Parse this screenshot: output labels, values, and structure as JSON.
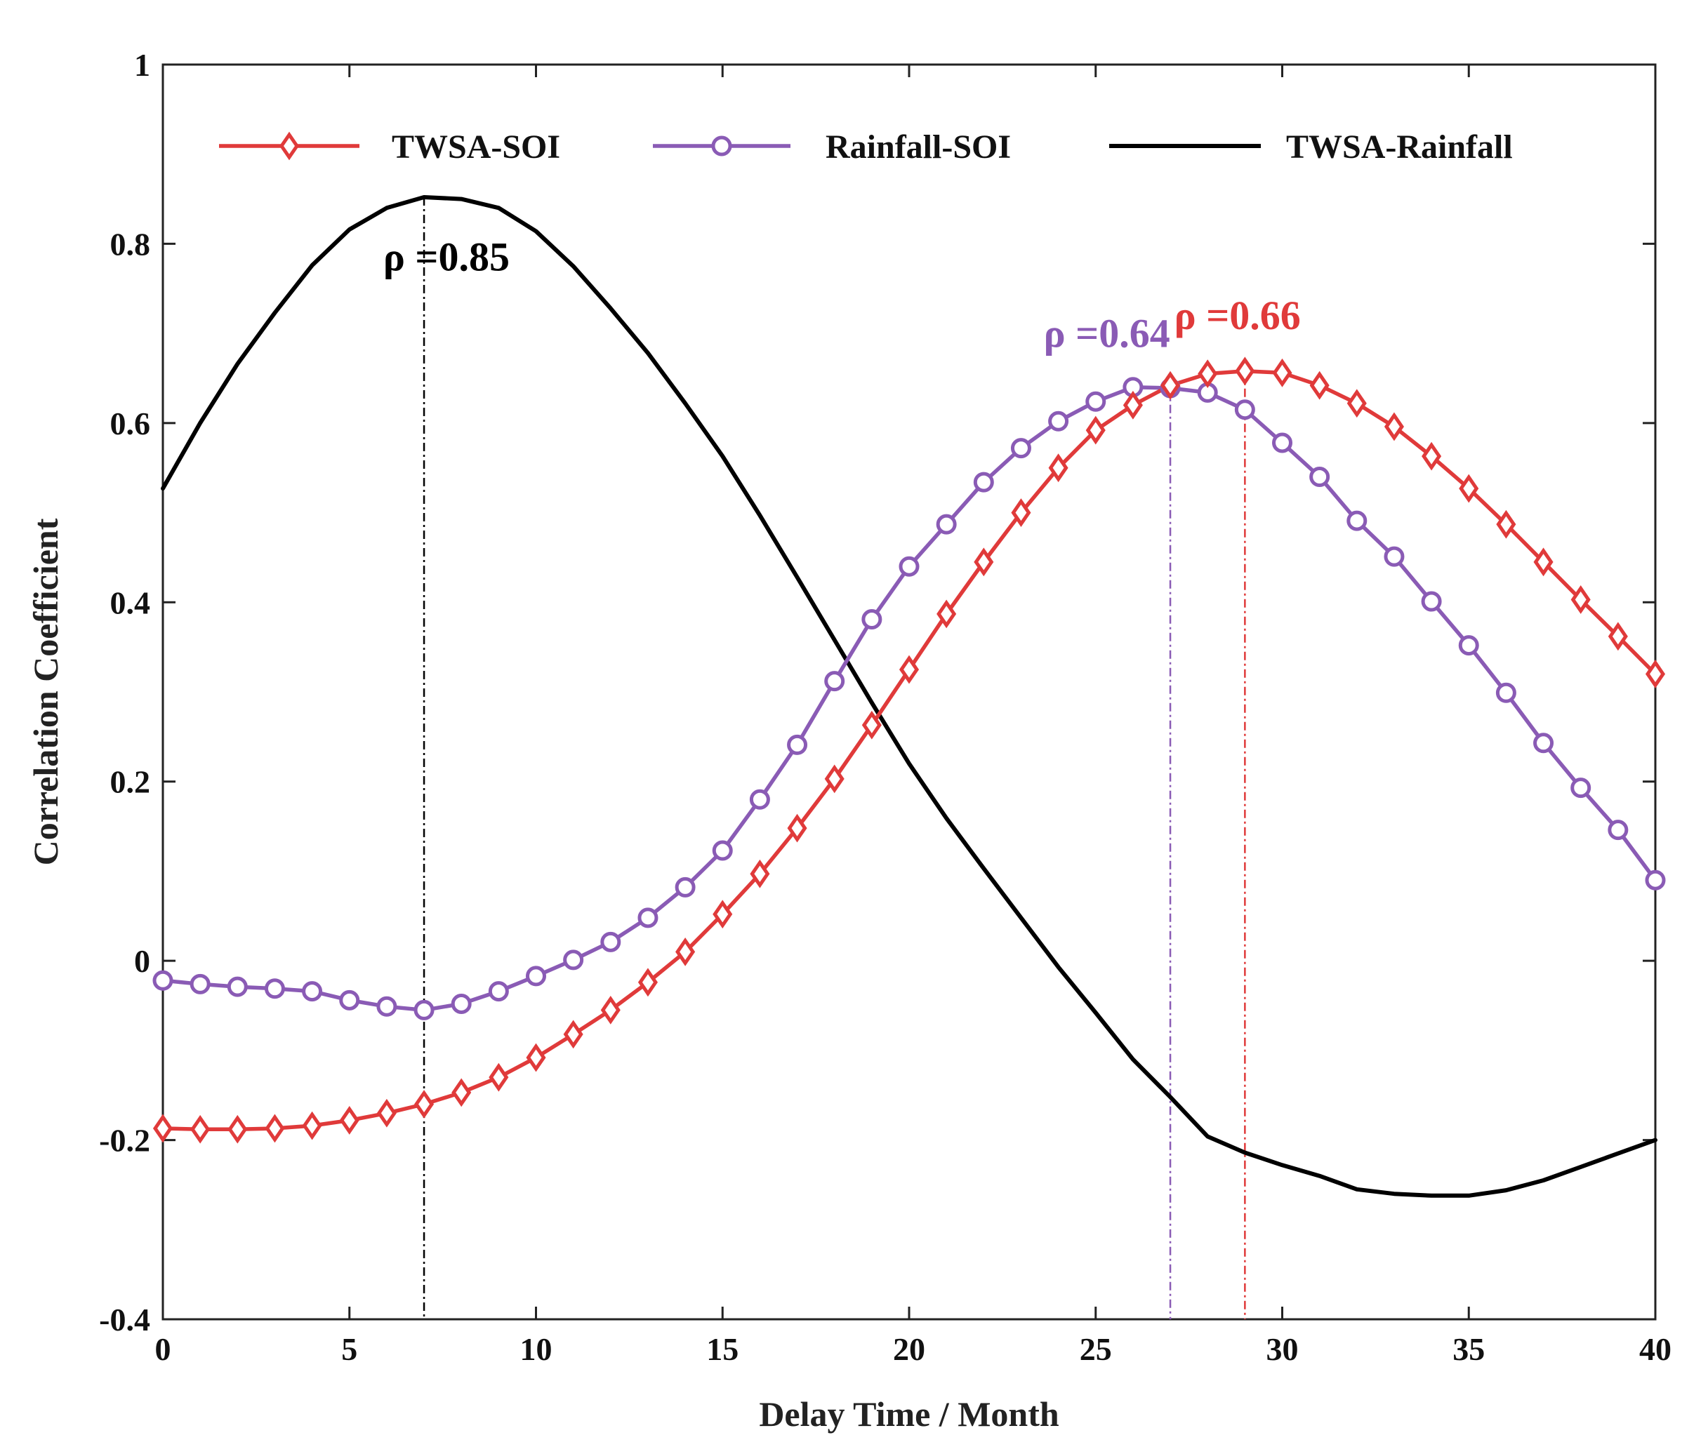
{
  "chart_data": {
    "type": "line",
    "xlabel": "Delay Time / Month",
    "ylabel": "Correlation Coefficient",
    "xlim": [
      0,
      40
    ],
    "ylim": [
      -0.4,
      1
    ],
    "xticks": [
      0,
      5,
      10,
      15,
      20,
      25,
      30,
      35,
      40
    ],
    "xtick_labels": [
      "0",
      "5",
      "10",
      "15",
      "20",
      "25",
      "30",
      "35",
      "40"
    ],
    "yticks": [
      -0.4,
      -0.2,
      0,
      0.2,
      0.4,
      0.6,
      0.8,
      1
    ],
    "ytick_labels": [
      "-0.4",
      "-0.2",
      "0",
      "0.2",
      "0.4",
      "0.6",
      "0.8",
      "1"
    ],
    "grid": false,
    "legend_position": "top",
    "series": [
      {
        "name": "TWSA-SOI",
        "color": "#e03a3a",
        "marker": "diamond",
        "x": [
          0,
          1,
          2,
          3,
          4,
          5,
          6,
          7,
          8,
          9,
          10,
          11,
          12,
          13,
          14,
          15,
          16,
          17,
          18,
          19,
          20,
          21,
          22,
          23,
          24,
          25,
          26,
          27,
          28,
          29,
          30,
          31,
          32,
          33,
          34,
          35,
          36,
          37,
          38,
          39,
          40
        ],
        "values": [
          -0.187,
          -0.188,
          -0.188,
          -0.187,
          -0.184,
          -0.178,
          -0.17,
          -0.16,
          -0.147,
          -0.13,
          -0.108,
          -0.082,
          -0.055,
          -0.024,
          0.01,
          0.052,
          0.097,
          0.148,
          0.203,
          0.263,
          0.325,
          0.387,
          0.445,
          0.5,
          0.55,
          0.592,
          0.62,
          0.642,
          0.655,
          0.658,
          0.656,
          0.642,
          0.622,
          0.596,
          0.563,
          0.527,
          0.487,
          0.445,
          0.403,
          0.362,
          0.32
        ]
      },
      {
        "name": "Rainfall-SOI",
        "color": "#8a5bb5",
        "marker": "circle",
        "x": [
          0,
          1,
          2,
          3,
          4,
          5,
          6,
          7,
          8,
          9,
          10,
          11,
          12,
          13,
          14,
          15,
          16,
          17,
          18,
          19,
          20,
          21,
          22,
          23,
          24,
          25,
          26,
          27,
          28,
          29,
          30,
          31,
          32,
          33,
          34,
          35,
          36,
          37,
          38,
          39,
          40
        ],
        "values": [
          -0.022,
          -0.026,
          -0.029,
          -0.031,
          -0.034,
          -0.044,
          -0.051,
          -0.055,
          -0.048,
          -0.034,
          -0.017,
          0.001,
          0.021,
          0.048,
          0.082,
          0.123,
          0.18,
          0.241,
          0.312,
          0.381,
          0.44,
          0.487,
          0.534,
          0.572,
          0.602,
          0.624,
          0.64,
          0.639,
          0.634,
          0.615,
          0.578,
          0.54,
          0.491,
          0.451,
          0.401,
          0.352,
          0.299,
          0.243,
          0.193,
          0.146,
          0.09
        ]
      },
      {
        "name": "TWSA-Rainfall",
        "color": "#000000",
        "marker": "none",
        "x": [
          0,
          1,
          2,
          3,
          4,
          5,
          6,
          7,
          8,
          9,
          10,
          11,
          12,
          13,
          14,
          15,
          16,
          17,
          18,
          19,
          20,
          21,
          22,
          23,
          24,
          25,
          26,
          27,
          28,
          29,
          30,
          31,
          32,
          33,
          34,
          35,
          36,
          37,
          38,
          39,
          40
        ],
        "values": [
          0.527,
          0.6,
          0.666,
          0.723,
          0.776,
          0.816,
          0.84,
          0.852,
          0.85,
          0.84,
          0.814,
          0.775,
          0.728,
          0.678,
          0.622,
          0.563,
          0.497,
          0.428,
          0.358,
          0.288,
          0.22,
          0.159,
          0.103,
          0.048,
          -0.007,
          -0.058,
          -0.11,
          -0.152,
          -0.196,
          -0.214,
          -0.228,
          -0.24,
          -0.255,
          -0.26,
          -0.262,
          -0.262,
          -0.256,
          -0.245,
          -0.23,
          -0.215,
          -0.2
        ]
      }
    ],
    "annotations": [
      {
        "label": "ρ =0.85",
        "x": 7,
        "y": 0.852,
        "color": "#000000",
        "text_anchor_x": 7.6,
        "text_anchor_y": 0.77
      },
      {
        "label": "ρ =0.64",
        "x": 27,
        "y": 0.64,
        "color": "#8a5bb5",
        "text_anchor_x": 25.3,
        "text_anchor_y": 0.685
      },
      {
        "label": "ρ =0.66",
        "x": 29,
        "y": 0.658,
        "color": "#e03a3a",
        "text_anchor_x": 28.8,
        "text_anchor_y": 0.705
      }
    ]
  }
}
